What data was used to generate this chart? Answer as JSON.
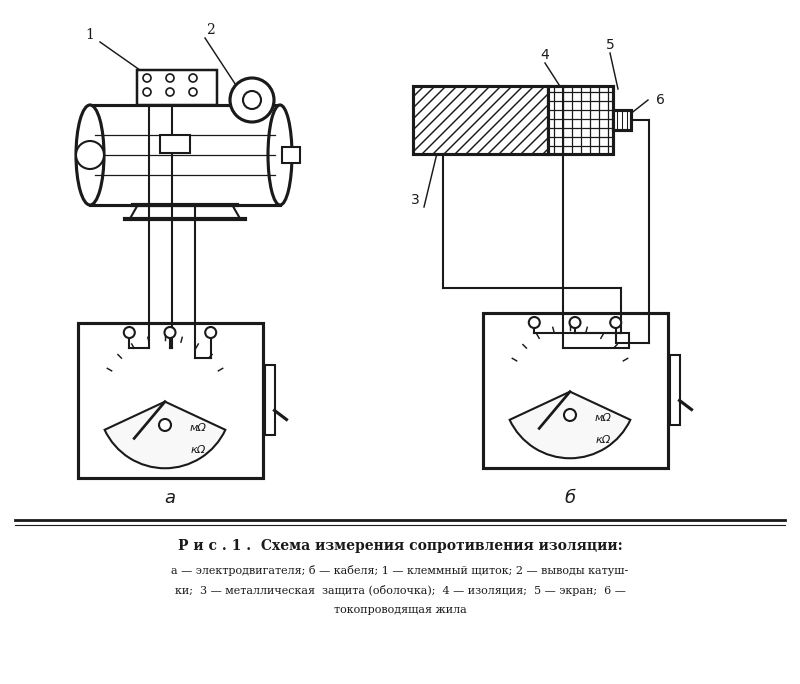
{
  "bg_color": "#ffffff",
  "line_color": "#1a1a1a",
  "title_text": "Р и с . 1 .  Схема измерения сопротивления изоляции:",
  "caption_line1": "а — электродвигателя; б — кабеля; 1 — клеммный щиток; 2 — выводы катуш-",
  "caption_line2": "ки;  3 — металлическая  защита (оболочка);  4 — изоляция;  5 — экран;  6 —",
  "caption_line3": "токопроводящая жила",
  "label_a": "а",
  "label_b": "б",
  "mohm": "мΩ",
  "kohm": "кΩ"
}
